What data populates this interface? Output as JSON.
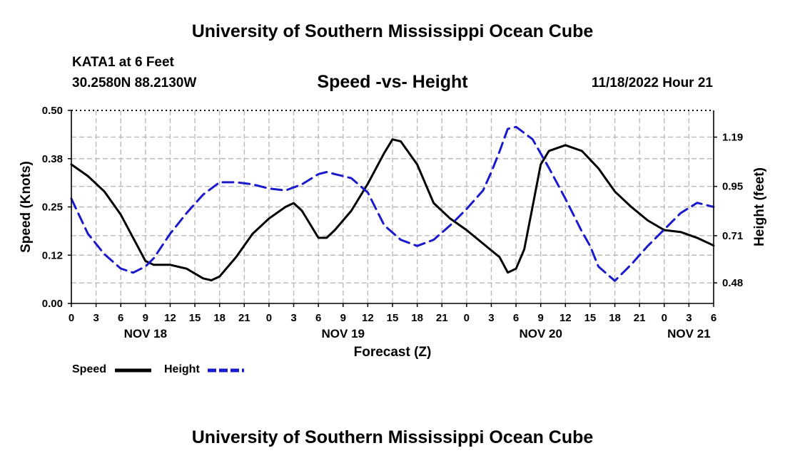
{
  "header": {
    "title": "University of Southern Mississippi Ocean Cube",
    "station": "KATA1 at 6 Feet",
    "coords": "30.2580N  88.2130W",
    "subtitle": "Speed -vs- Height",
    "datetime": "11/18/2022 Hour 21"
  },
  "footer": {
    "title": "University of Southern Mississippi Ocean Cube"
  },
  "colors": {
    "speed": "#000000",
    "height": "#1a1acc",
    "grid": "#bbbbbb"
  },
  "chart_data": {
    "type": "line",
    "title": "Speed -vs- Height",
    "xlabel": "Forecast (Z)",
    "ylabel_left": "Speed (Knots)",
    "ylabel_right": "Height (feet)",
    "xlim": [
      0,
      78
    ],
    "ylim_left": [
      0,
      0.5
    ],
    "ylim_right": [
      0.38,
      1.32
    ],
    "x_ticks": [
      0,
      3,
      6,
      9,
      12,
      15,
      18,
      21,
      24,
      27,
      30,
      33,
      36,
      39,
      42,
      45,
      48,
      51,
      54,
      57,
      60,
      63,
      66,
      69,
      72,
      75,
      78
    ],
    "x_tick_labels": [
      "0",
      "3",
      "6",
      "9",
      "12",
      "15",
      "18",
      "21",
      "0",
      "3",
      "6",
      "9",
      "12",
      "15",
      "18",
      "21",
      "0",
      "3",
      "6",
      "9",
      "12",
      "15",
      "18",
      "21",
      "0",
      "3",
      "6"
    ],
    "date_labels": [
      {
        "x": 9,
        "label": "NOV 18"
      },
      {
        "x": 33,
        "label": "NOV 19"
      },
      {
        "x": 57,
        "label": "NOV 20"
      },
      {
        "x": 75,
        "label": "NOV 21"
      }
    ],
    "y_left_ticks": [
      0,
      0.125,
      0.25,
      0.375,
      0.5
    ],
    "y_left_tick_labels": [
      "0.00",
      "0.12",
      "0.25",
      "0.38",
      "0.50"
    ],
    "y_right_ticks": [
      0.48,
      0.71,
      0.95,
      1.19
    ],
    "y_right_tick_labels": [
      "0.48",
      "0.71",
      "0.95",
      "1.19"
    ],
    "grid": true,
    "series": [
      {
        "name": "Speed",
        "axis": "left",
        "style": "solid",
        "x": [
          0,
          2,
          4,
          6,
          8,
          9,
          10,
          12,
          14,
          16,
          17,
          18,
          20,
          22,
          24,
          26,
          27,
          28,
          30,
          31,
          32,
          34,
          36,
          38,
          39,
          40,
          42,
          44,
          46,
          48,
          50,
          52,
          52.5,
          53,
          54,
          55,
          56,
          57,
          58,
          60,
          62,
          64,
          66,
          68,
          70,
          72,
          74,
          76,
          78
        ],
        "values": [
          0.36,
          0.33,
          0.29,
          0.23,
          0.15,
          0.11,
          0.1,
          0.1,
          0.09,
          0.065,
          0.06,
          0.07,
          0.12,
          0.18,
          0.22,
          0.25,
          0.26,
          0.24,
          0.17,
          0.17,
          0.19,
          0.24,
          0.31,
          0.39,
          0.425,
          0.42,
          0.36,
          0.26,
          0.22,
          0.19,
          0.155,
          0.12,
          0.1,
          0.08,
          0.09,
          0.14,
          0.25,
          0.36,
          0.395,
          0.41,
          0.395,
          0.35,
          0.29,
          0.25,
          0.215,
          0.19,
          0.185,
          0.17,
          0.15
        ]
      },
      {
        "name": "Height",
        "axis": "right",
        "style": "dashed",
        "x": [
          0,
          2,
          4,
          6,
          7.5,
          9,
          10,
          12,
          14,
          16,
          18,
          20,
          22,
          24,
          26,
          28,
          30,
          31,
          32,
          34,
          36,
          38,
          40,
          42,
          44,
          46,
          48,
          50,
          51,
          52,
          53,
          54,
          56,
          58,
          60,
          62,
          63,
          64,
          66,
          68,
          70,
          72,
          74,
          76,
          78
        ],
        "values": [
          0.89,
          0.72,
          0.62,
          0.55,
          0.53,
          0.56,
          0.6,
          0.72,
          0.82,
          0.91,
          0.97,
          0.97,
          0.96,
          0.94,
          0.93,
          0.96,
          1.01,
          1.02,
          1.01,
          0.99,
          0.92,
          0.76,
          0.69,
          0.66,
          0.69,
          0.76,
          0.84,
          0.93,
          1.02,
          1.12,
          1.23,
          1.24,
          1.18,
          1.04,
          0.89,
          0.73,
          0.66,
          0.56,
          0.49,
          0.57,
          0.66,
          0.74,
          0.82,
          0.87,
          0.85
        ]
      }
    ],
    "legend": [
      {
        "label": "Speed",
        "style": "solid"
      },
      {
        "label": "Height",
        "style": "dashed"
      }
    ]
  }
}
